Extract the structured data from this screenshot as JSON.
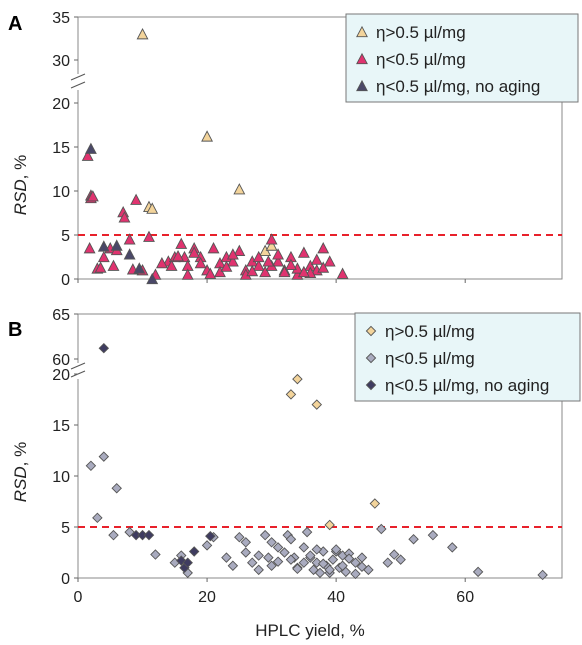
{
  "xaxis": {
    "label": "HPLC yield, %",
    "ticks": [
      "0",
      "20",
      "40",
      "60"
    ],
    "range": [
      0,
      75
    ]
  },
  "colors": {
    "refline": "#e8212b",
    "A": {
      "high": "#f3d49b",
      "low": "#e0336f",
      "noaging": "#4a4868"
    },
    "B": {
      "high": "#f3d49b",
      "low": "#a9abbf",
      "noaging": "#3f3c60"
    }
  },
  "chart_data": [
    {
      "panel": "A",
      "type": "scatter",
      "marker": "triangle",
      "xlabel": "HPLC yield, %",
      "ylabel": "RSD, %",
      "ylim_lower": [
        0,
        20
      ],
      "ylim_upper": [
        30,
        35
      ],
      "yticks_lower": [
        "0",
        "5",
        "10",
        "15",
        "20"
      ],
      "yticks_upper": [
        "30",
        "35"
      ],
      "axis_break": true,
      "reference_line": 5,
      "legend_position": "top-right",
      "series": [
        {
          "name": "η>0.5 µl/mg",
          "color": "#f3d49b",
          "x": [
            10,
            20,
            25,
            11,
            11.5,
            29,
            30
          ],
          "y": [
            33,
            16.2,
            10.2,
            8.2,
            8,
            3.2,
            3.8
          ]
        },
        {
          "name": "η<0.5 µl/mg",
          "color": "#e0336f",
          "x": [
            1.5,
            2,
            2,
            2.3,
            1.8,
            3,
            4,
            5,
            5.5,
            7,
            7.2,
            8,
            9,
            10,
            11,
            12,
            14,
            15,
            16,
            16.5,
            17,
            18,
            19,
            20,
            21,
            22,
            23,
            24,
            25,
            26,
            27,
            28,
            29,
            30,
            31,
            32,
            33,
            34,
            35,
            36,
            37,
            38,
            39,
            41,
            17,
            19,
            22,
            24,
            26,
            28,
            30,
            32,
            34,
            36,
            38,
            14.5,
            18,
            20.5,
            23,
            27,
            29.5,
            31,
            33,
            35,
            37,
            3.5,
            6,
            8.5,
            13,
            15.5
          ],
          "y": [
            14,
            9.5,
            9.2,
            9.4,
            3.5,
            1.2,
            2.5,
            3.5,
            1.5,
            7.6,
            7,
            4.5,
            9,
            1,
            4.8,
            0.5,
            2,
            2.5,
            4,
            2.5,
            1.5,
            3.5,
            2.5,
            1,
            3.5,
            1.8,
            2.5,
            2,
            3.2,
            1,
            2,
            1.5,
            0.8,
            4.5,
            2,
            1,
            2.5,
            0.5,
            3,
            1.5,
            1,
            3.5,
            2,
            0.6,
            0.5,
            1.8,
            0.8,
            2.8,
            0.5,
            2.5,
            1.5,
            0.8,
            1.2,
            0.7,
            1.3,
            1.5,
            3,
            0.6,
            1.4,
            0.9,
            2,
            2.8,
            1.6,
            0.8,
            2.2,
            1.3,
            3.3,
            1.1,
            1.8,
            2.6
          ]
        },
        {
          "name": "η<0.5 µl/mg, no aging",
          "color": "#4a4868",
          "x": [
            2,
            4,
            6,
            8,
            9.5,
            11.5
          ],
          "y": [
            14.8,
            3.7,
            3.8,
            2.8,
            1.2,
            0
          ]
        }
      ]
    },
    {
      "panel": "B",
      "type": "scatter",
      "marker": "diamond",
      "xlabel": "HPLC yield, %",
      "ylabel": "RSD, %",
      "ylim_lower": [
        0,
        20
      ],
      "ylim_upper": [
        60,
        65
      ],
      "yticks_lower": [
        "0",
        "5",
        "10",
        "15",
        "20"
      ],
      "yticks_upper": [
        "60",
        "65"
      ],
      "axis_break": true,
      "reference_line": 5,
      "legend_position": "top-right",
      "series": [
        {
          "name": "η>0.5 µl/mg",
          "color": "#f3d49b",
          "x": [
            33,
            34,
            37,
            39,
            46
          ],
          "y": [
            18,
            19.5,
            17,
            5.2,
            7.3
          ]
        },
        {
          "name": "η<0.5 µl/mg",
          "color": "#a9abbf",
          "x": [
            2,
            4,
            3,
            6,
            5.5,
            8,
            12,
            15,
            16,
            17,
            20,
            21,
            23,
            24,
            25,
            26,
            27,
            28,
            29,
            29.5,
            30,
            31,
            32,
            32.5,
            33,
            33.5,
            34,
            35,
            35.5,
            36,
            36.5,
            37,
            37.5,
            38,
            38.5,
            39,
            39.5,
            40,
            40.5,
            41,
            41.5,
            42,
            43,
            44,
            45,
            47,
            48,
            49,
            50,
            52,
            55,
            58,
            62,
            72,
            28,
            30,
            33,
            35,
            37,
            39,
            41,
            43,
            26,
            31,
            34,
            36,
            38,
            40,
            42,
            44
          ],
          "y": [
            11,
            11.9,
            5.9,
            8.8,
            4.2,
            4.5,
            2.3,
            1.5,
            2.2,
            0.5,
            3.2,
            4,
            2,
            1.2,
            4,
            2.5,
            1.5,
            0.8,
            4.2,
            2,
            3.5,
            3,
            2.5,
            4.2,
            3.8,
            2,
            1,
            1.5,
            4.5,
            2,
            0.8,
            1.5,
            0.5,
            2.6,
            1.2,
            0.5,
            1.8,
            2.6,
            1,
            2.2,
            0.6,
            2.4,
            1.5,
            2,
            0.8,
            4.8,
            1.5,
            2.3,
            1.8,
            3.8,
            4.2,
            3,
            0.6,
            0.3,
            2.2,
            1.2,
            1.8,
            3,
            2.8,
            0.8,
            1.2,
            0.4,
            3.5,
            1.6,
            0.9,
            2.2,
            1.4,
            2.8,
            1.9,
            1.1
          ]
        },
        {
          "name": "η<0.5 µl/mg, no aging",
          "color": "#3f3c60",
          "x": [
            4,
            9,
            10,
            11,
            16,
            16.5,
            17,
            18,
            20.5
          ],
          "y": [
            61.2,
            4.2,
            4.2,
            4.2,
            1.7,
            1,
            1.5,
            2.6,
            4.1
          ]
        }
      ]
    }
  ]
}
